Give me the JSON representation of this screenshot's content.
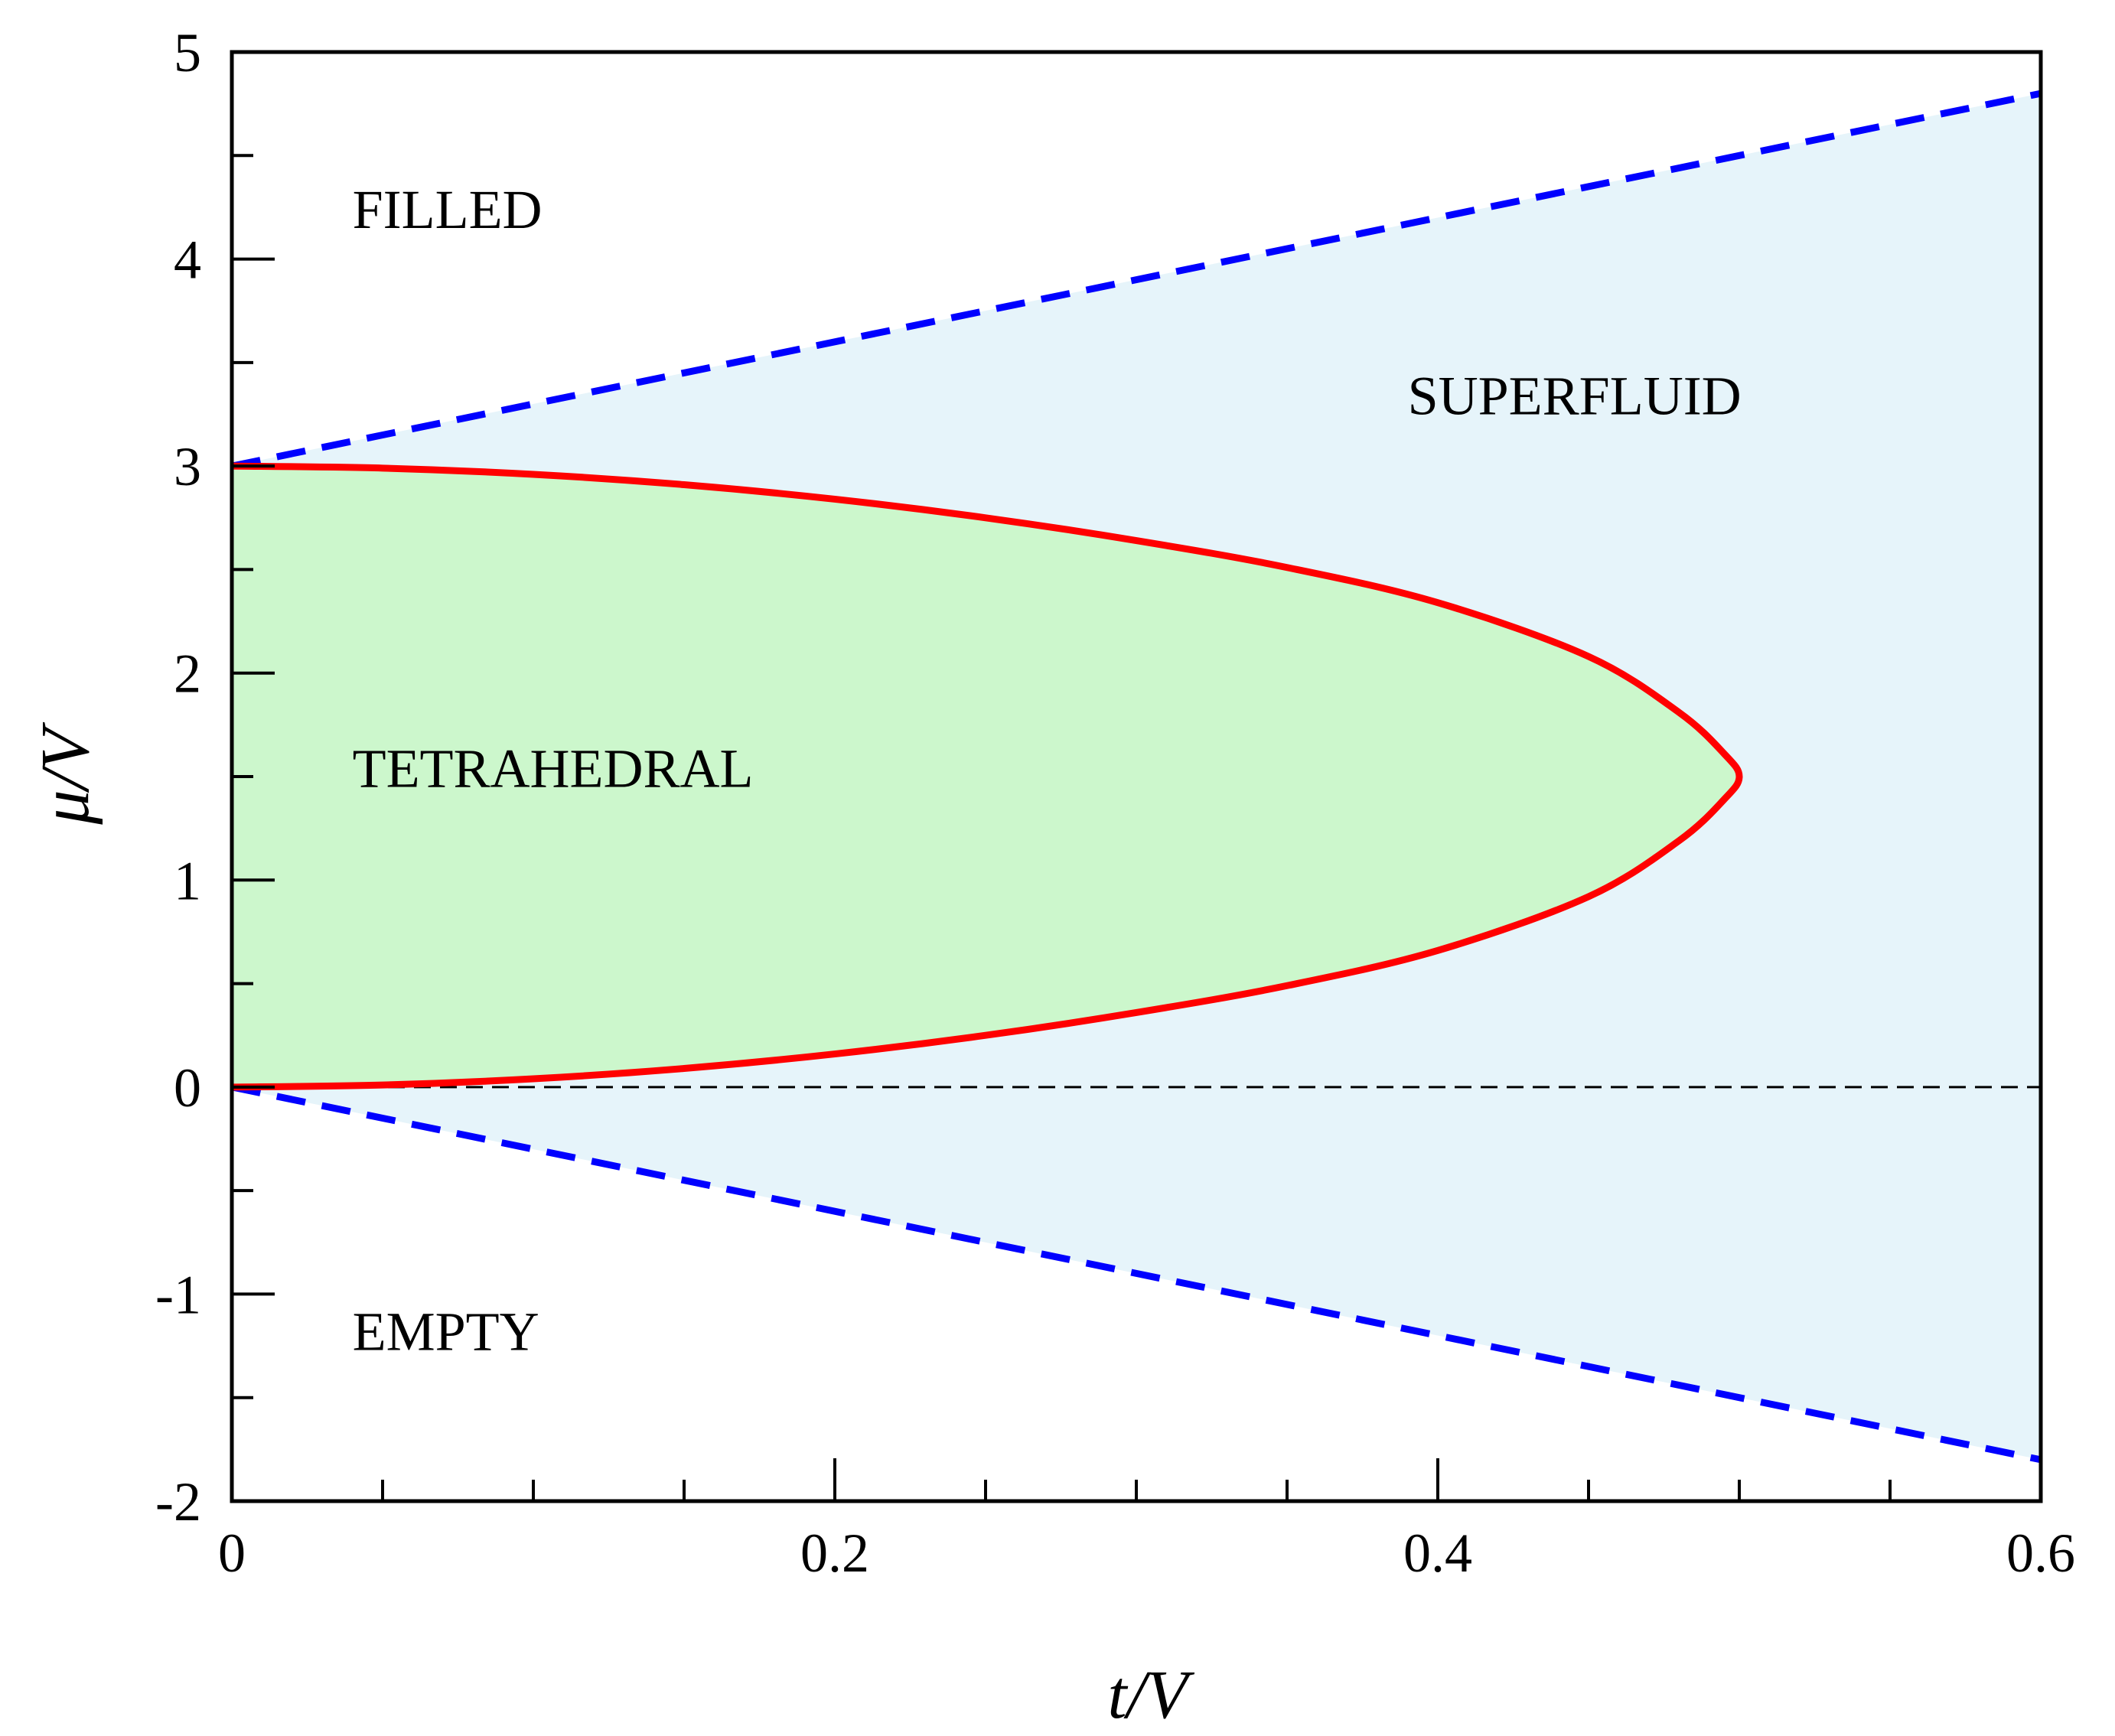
{
  "chart_data": {
    "type": "line",
    "xlabel": "t/V",
    "ylabel": "μ/V",
    "xlim": [
      0,
      0.6
    ],
    "ylim": [
      -2,
      5
    ],
    "x_major_ticks": [
      0,
      0.2,
      0.4,
      0.6
    ],
    "x_tick_labels": [
      "0",
      "0.2",
      "0.4",
      "0.6"
    ],
    "x_minor_step": 0.05,
    "y_major_ticks": [
      -2,
      -1,
      0,
      1,
      2,
      3,
      4,
      5
    ],
    "y_tick_labels": [
      "-2",
      "-1",
      "0",
      "1",
      "2",
      "3",
      "4",
      "5"
    ],
    "y_minor_step": 0.5,
    "grid": false,
    "series": [
      {
        "style": "solid",
        "color": "#ff0000",
        "x": [
          0,
          0.05,
          0.1,
          0.15,
          0.2,
          0.25,
          0.3,
          0.35,
          0.4,
          0.45,
          0.48,
          0.495,
          0.5,
          0.495,
          0.48,
          0.45,
          0.4,
          0.35,
          0.3,
          0.25,
          0.2,
          0.15,
          0.1,
          0.05,
          0
        ],
        "y": [
          3.0,
          2.99,
          2.96,
          2.91,
          2.84,
          2.75,
          2.64,
          2.51,
          2.34,
          2.08,
          1.81,
          1.61,
          1.5,
          1.39,
          1.19,
          0.92,
          0.66,
          0.49,
          0.36,
          0.25,
          0.16,
          0.09,
          0.04,
          0.01,
          0.0
        ]
      },
      {
        "style": "dashed",
        "color": "#0000ff",
        "x": [
          0,
          0.6
        ],
        "y": [
          3.0,
          4.8
        ]
      },
      {
        "style": "dashed",
        "color": "#0000ff",
        "x": [
          0,
          0.6
        ],
        "y": [
          0.0,
          -1.8
        ]
      },
      {
        "style": "thin-dashed",
        "color": "#000000",
        "x": [
          0,
          0.6
        ],
        "y": [
          0,
          0
        ]
      }
    ],
    "regions": [
      {
        "label": "FILLED",
        "fill": "#ffffff"
      },
      {
        "label": "SUPERFLUID",
        "fill": "#e6f4fa"
      },
      {
        "label": "TETRAHEDRAL",
        "fill": "#ccf7cc"
      },
      {
        "label": "EMPTY",
        "fill": "#ffffff"
      }
    ],
    "annotations": [
      {
        "text": "FILLED",
        "x": 0.04,
        "y": 4.15
      },
      {
        "text": "SUPERFLUID",
        "x": 0.39,
        "y": 3.25
      },
      {
        "text": "TETRAHEDRAL",
        "x": 0.04,
        "y": 1.45
      },
      {
        "text": "EMPTY",
        "x": 0.04,
        "y": -1.27
      }
    ]
  }
}
